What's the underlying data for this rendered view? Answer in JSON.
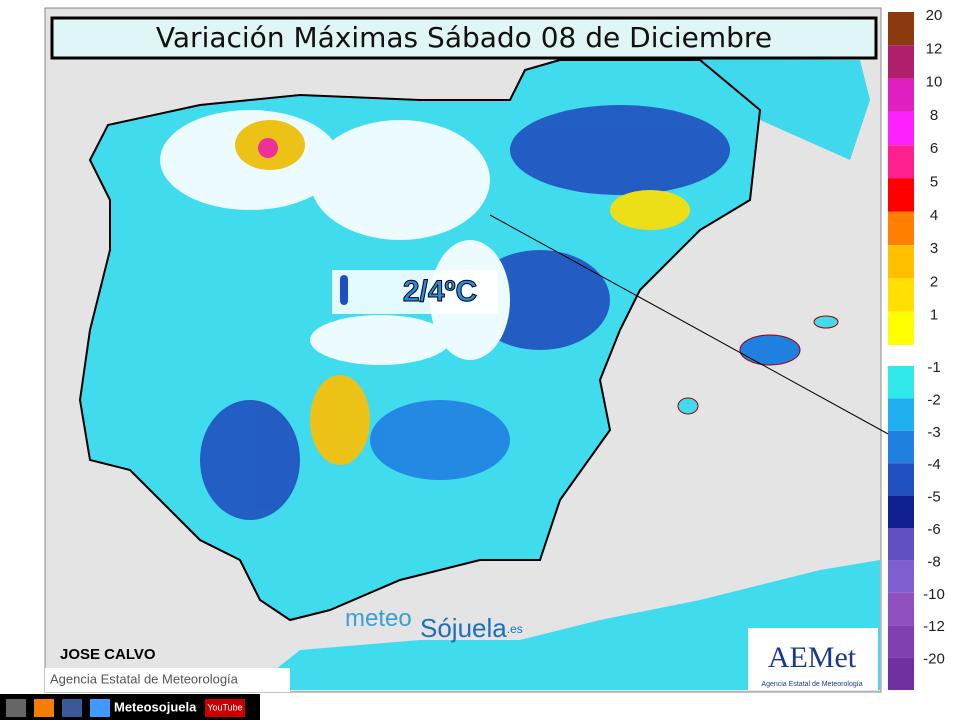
{
  "header": {
    "title": "Variación Máximas Sábado 08 de Diciembre"
  },
  "annotation": {
    "text": "2/4ºC"
  },
  "author": "JOSE CALVO",
  "credit": "Agencia Estatal de Meteorología",
  "watermark": {
    "part1": "meteo",
    "part2": "Sójuela",
    "part3": ".es"
  },
  "logo": {
    "name": "AEMet",
    "subtitle": "Agencia Estatal de Meteorología"
  },
  "footer": {
    "handle": "Meteosojuela",
    "video": "YouTube"
  },
  "legend": {
    "positive": [
      {
        "label": 20,
        "color": "#8b3a0f"
      },
      {
        "label": 12,
        "color": "#b0206a"
      },
      {
        "label": 10,
        "color": "#e020c0"
      },
      {
        "label": 8,
        "color": "#ff20ff"
      },
      {
        "label": 6,
        "color": "#ff2090"
      },
      {
        "label": 5,
        "color": "#ff0000"
      },
      {
        "label": 4,
        "color": "#ff7f00"
      },
      {
        "label": 3,
        "color": "#ffc000"
      },
      {
        "label": 2,
        "color": "#ffe000"
      },
      {
        "label": 1,
        "color": "#ffff00"
      }
    ],
    "negative": [
      {
        "label": -1,
        "color": "#30e8e8"
      },
      {
        "label": -2,
        "color": "#20b0f0"
      },
      {
        "label": -3,
        "color": "#2080e0"
      },
      {
        "label": -4,
        "color": "#2050c0"
      },
      {
        "label": -5,
        "color": "#102090"
      },
      {
        "label": -6,
        "color": "#6050c0"
      },
      {
        "label": -8,
        "color": "#8060d0"
      },
      {
        "label": -10,
        "color": "#9050c0"
      },
      {
        "label": -12,
        "color": "#8040b0"
      },
      {
        "label": -20,
        "color": "#7030a0"
      }
    ]
  }
}
